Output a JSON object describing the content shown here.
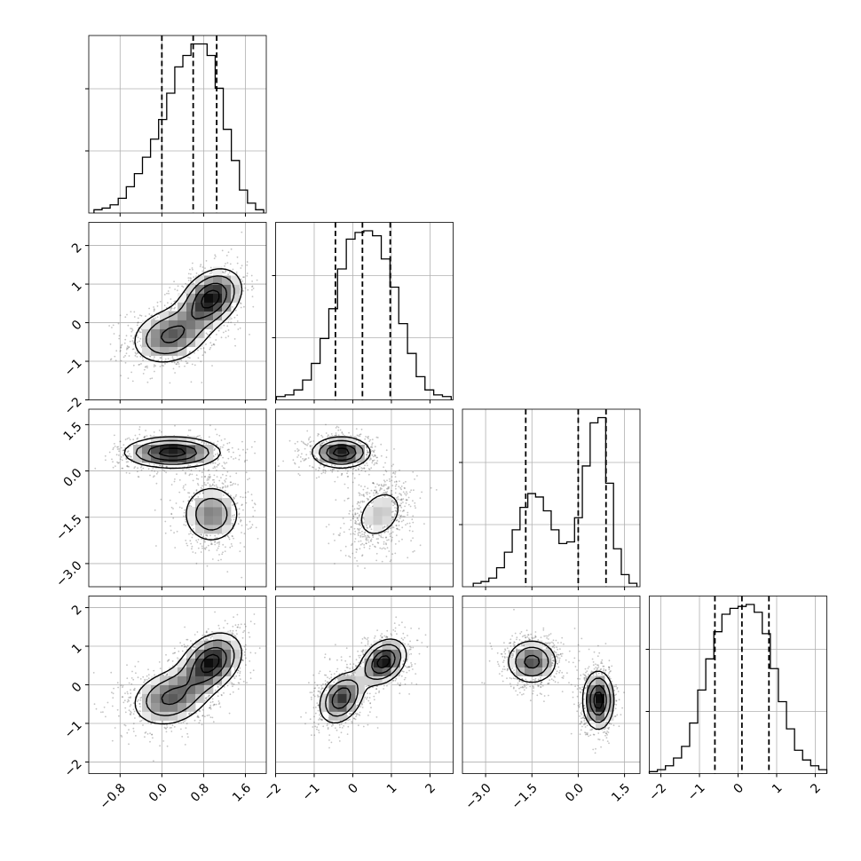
{
  "chart_data": {
    "type": "corner",
    "grid": true,
    "params": [
      {
        "range": [
          -1.4,
          2.0
        ],
        "ticks": [
          -0.8,
          0.0,
          0.8,
          1.6
        ],
        "tick_labels": [
          "−0.8",
          "0.0",
          "0.8",
          "1.6"
        ],
        "hist_range": [
          -1.3,
          1.95
        ],
        "hist_counts": [
          2,
          3,
          5,
          9,
          16,
          24,
          34,
          45,
          57,
          73,
          89,
          96,
          103,
          103,
          96,
          76,
          51,
          32,
          14,
          6,
          2
        ],
        "quantiles": [
          0.0,
          0.6,
          1.05
        ]
      },
      {
        "range": [
          -2.0,
          2.6
        ],
        "ticks": [
          -2,
          -1,
          0,
          1,
          2
        ],
        "tick_labels": [
          "−2",
          "−1",
          "0",
          "1",
          "2"
        ],
        "hist_range": [
          -1.98,
          2.55
        ],
        "hist_counts": [
          2,
          3,
          6,
          12,
          22,
          37,
          55,
          79,
          97,
          101,
          102,
          99,
          85,
          68,
          46,
          28,
          14,
          6,
          3,
          2
        ],
        "quantiles": [
          -0.45,
          0.25,
          0.97
        ]
      },
      {
        "range": [
          -3.75,
          2.0
        ],
        "ticks": [
          -3.0,
          -1.5,
          0.0,
          1.5
        ],
        "tick_labels": [
          "−3.0",
          "−1.5",
          "0.0",
          "1.5"
        ],
        "hist_range": [
          -3.4,
          1.9
        ],
        "hist_counts": [
          2,
          3,
          5,
          11,
          20,
          33,
          46,
          54,
          52,
          44,
          33,
          25,
          26,
          40,
          70,
          95,
          98,
          60,
          22,
          7,
          2
        ],
        "quantiles": [
          -1.7,
          0.0,
          0.9
        ]
      },
      {
        "range": [
          -2.3,
          2.3
        ],
        "ticks": [
          -2,
          -1,
          0,
          1,
          2
        ],
        "tick_labels": [
          "−2",
          "−1",
          "0",
          "1",
          "2"
        ],
        "hist_range": [
          -2.3,
          2.3
        ],
        "hist_counts": [
          1,
          2,
          4,
          8,
          14,
          26,
          43,
          59,
          73,
          82,
          85,
          86,
          87,
          83,
          72,
          54,
          37,
          23,
          12,
          7,
          4,
          2
        ],
        "quantiles": [
          -0.6,
          0.1,
          0.8
        ]
      }
    ],
    "pairs": [
      {
        "row": 1,
        "col": 0,
        "modes": [
          {
            "x": 0.15,
            "y": -0.35,
            "sx": 0.45,
            "sy": 0.45,
            "rho": 0.2,
            "w": 0.5
          },
          {
            "x": 0.95,
            "y": 0.65,
            "sx": 0.35,
            "sy": 0.45,
            "rho": 0.3,
            "w": 0.5
          }
        ]
      },
      {
        "row": 2,
        "col": 0,
        "modes": [
          {
            "x": 0.2,
            "y": 0.6,
            "sx": 0.55,
            "sy": 0.3,
            "rho": 0.0,
            "w": 0.55
          },
          {
            "x": 0.95,
            "y": -1.4,
            "sx": 0.35,
            "sy": 0.6,
            "rho": 0.0,
            "w": 0.45
          }
        ]
      },
      {
        "row": 2,
        "col": 1,
        "modes": [
          {
            "x": -0.3,
            "y": 0.6,
            "sx": 0.45,
            "sy": 0.3,
            "rho": 0.0,
            "w": 0.55
          },
          {
            "x": 0.7,
            "y": -1.4,
            "sx": 0.45,
            "sy": 0.6,
            "rho": 0.3,
            "w": 0.45
          }
        ]
      },
      {
        "row": 3,
        "col": 0,
        "modes": [
          {
            "x": 0.15,
            "y": -0.35,
            "sx": 0.45,
            "sy": 0.45,
            "rho": 0.2,
            "w": 0.5
          },
          {
            "x": 0.95,
            "y": 0.6,
            "sx": 0.35,
            "sy": 0.45,
            "rho": 0.3,
            "w": 0.5
          }
        ]
      },
      {
        "row": 3,
        "col": 1,
        "modes": [
          {
            "x": -0.3,
            "y": -0.35,
            "sx": 0.35,
            "sy": 0.4,
            "rho": 0.3,
            "w": 0.5
          },
          {
            "x": 0.8,
            "y": 0.6,
            "sx": 0.35,
            "sy": 0.35,
            "rho": 0.3,
            "w": 0.5
          }
        ]
      },
      {
        "row": 3,
        "col": 2,
        "modes": [
          {
            "x": -1.5,
            "y": 0.6,
            "sx": 0.5,
            "sy": 0.35,
            "rho": 0.0,
            "w": 0.5
          },
          {
            "x": 0.65,
            "y": -0.4,
            "sx": 0.3,
            "sy": 0.45,
            "rho": 0.0,
            "w": 0.5
          }
        ]
      }
    ]
  }
}
